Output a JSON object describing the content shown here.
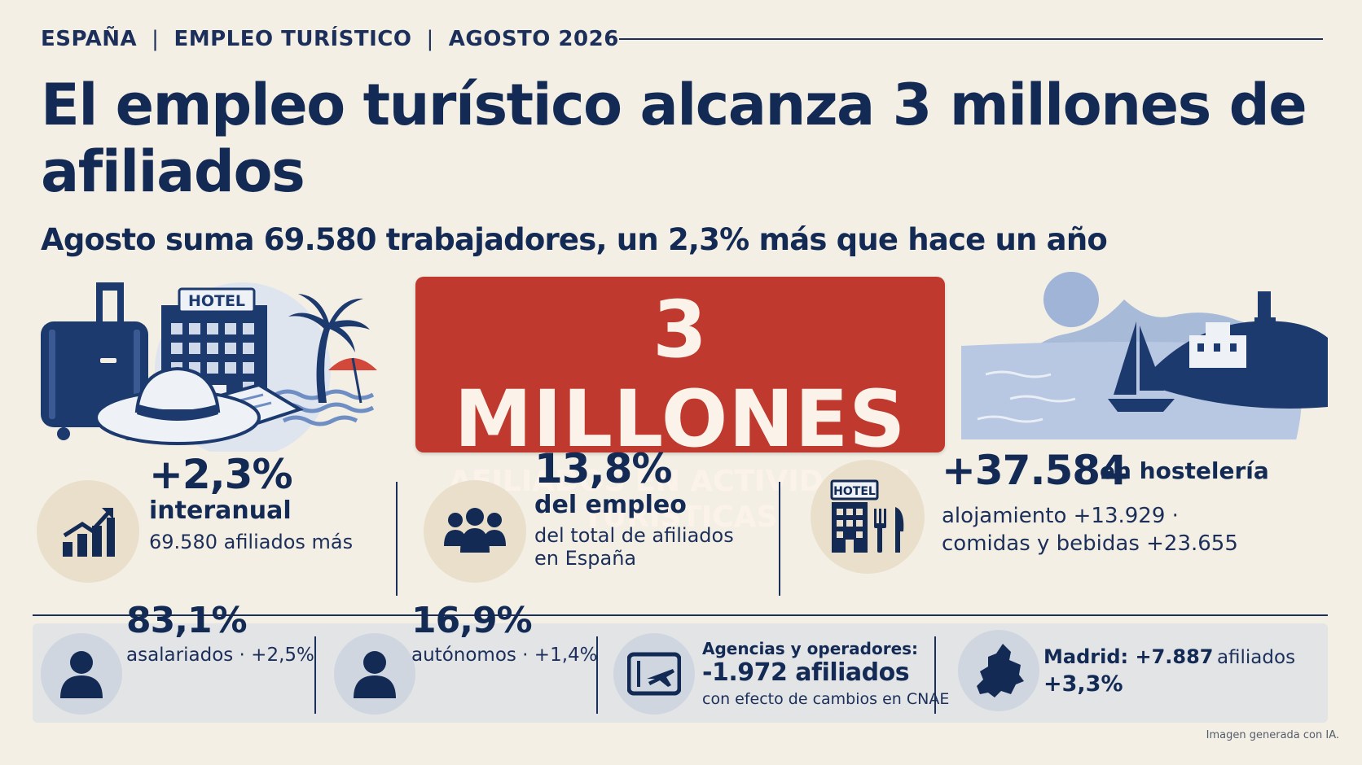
{
  "kicker": {
    "country": "ESPAÑA",
    "topic": "EMPLEO TURÍSTICO",
    "date": "AGOSTO 2026",
    "separator": "|"
  },
  "headline": "El empleo turístico alcanza 3 millones de afiliados",
  "subhead": "Agosto suma 69.580 trabajadores, un 2,3% más que hace un año",
  "banner": {
    "big": "3 MILLONES",
    "line1": "AFILIADOS EN ACTIVIDADES",
    "line2": "TURÍSTICAS",
    "color": "#c0392f"
  },
  "illustrations": {
    "left_icons": [
      "suitcase-icon",
      "hotel-building-icon",
      "sun-hat-icon",
      "map-icon",
      "palm-tree-icon",
      "beach-umbrella-icon"
    ],
    "hotel_sign": "HOTEL",
    "right_icons": [
      "sun-icon",
      "coastal-village-icon",
      "sailboat-icon"
    ]
  },
  "stats": {
    "growth": {
      "value": "+2,3%",
      "label": "interanual",
      "note": "69.580 afiliados más",
      "icon": "bar-chart-up-icon"
    },
    "share": {
      "value": "13,8%",
      "label": "del empleo",
      "note1": "del total de afiliados",
      "note2": "en España",
      "icon": "people-group-icon"
    },
    "hospitality": {
      "value": "+37.584",
      "label": "en hostelería",
      "note1": "alojamiento +13.929 ·",
      "note2": "comidas y bebidas +23.655",
      "icon": "hotel-restaurant-icon",
      "sign": "HOTEL"
    }
  },
  "panel": {
    "employees": {
      "value": "83,1%",
      "note": "asalariados · +2,5%",
      "icon": "person-icon"
    },
    "self_employed": {
      "value": "16,9%",
      "note": "autónomos · +1,4%",
      "icon": "person-icon"
    },
    "agencies": {
      "title": "Agencias y operadores:",
      "value": "-1.972 afiliados",
      "note": "con efecto de cambios en CNAE",
      "icon": "travel-ticket-icon"
    },
    "madrid": {
      "line1_bold": "Madrid: +7.887",
      "line1_rest": "afiliados",
      "line2": "+3,3%",
      "icon": "madrid-map-icon"
    }
  },
  "credit": "Imagen generada con IA.",
  "colors": {
    "navy": "#132a55",
    "background": "#f4efe4",
    "red": "#c0392f",
    "panel": "#e2e4e6",
    "blue_light": "#9fb4d6"
  }
}
